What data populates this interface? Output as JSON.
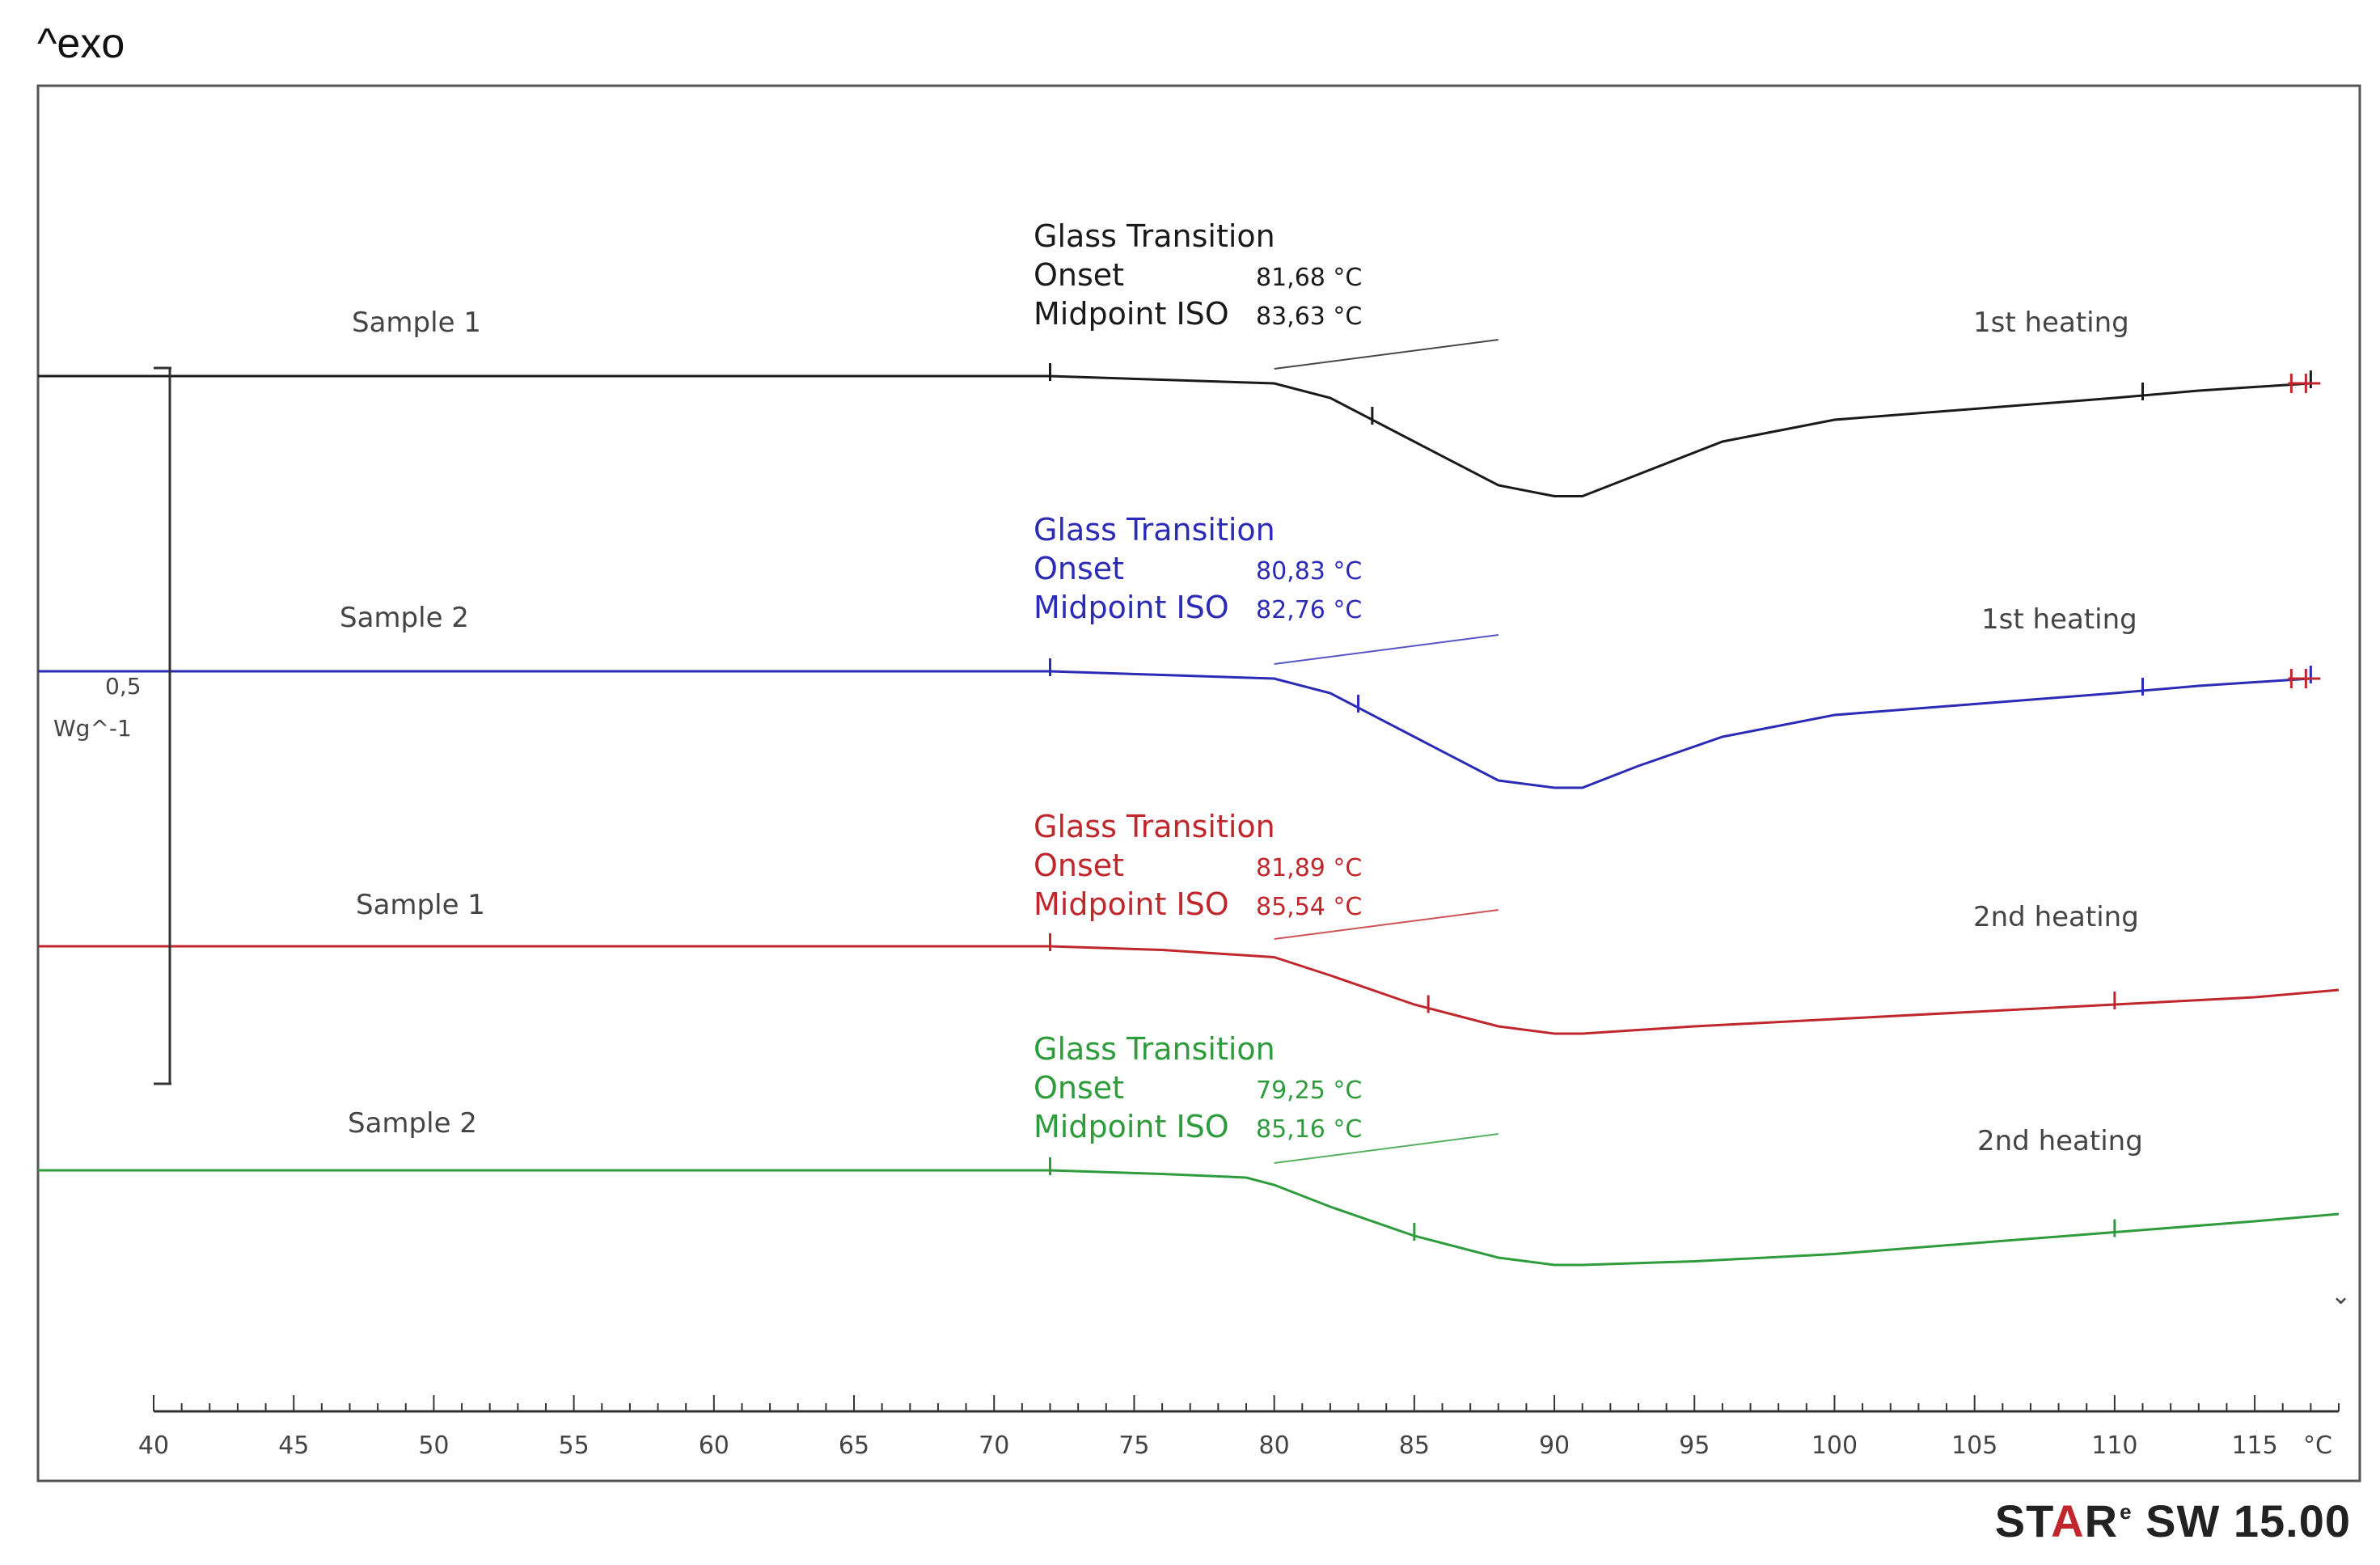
{
  "header": {
    "exo_label": "^exo"
  },
  "brand": {
    "name_part1": "ST",
    "name_red": "A",
    "name_part2": "R",
    "registered": "e",
    "version": "SW 15.00"
  },
  "scale_bar": {
    "value": "0,5",
    "unit": "Wg^-1"
  },
  "chart_data": {
    "type": "line",
    "title": "",
    "xlabel": "",
    "x_unit": "°C",
    "xlim": [
      40,
      118
    ],
    "x_tick_labels": [
      "40",
      "45",
      "50",
      "55",
      "60",
      "65",
      "70",
      "75",
      "80",
      "85",
      "90",
      "95",
      "100",
      "105",
      "110",
      "115"
    ],
    "grid": false,
    "series": [
      {
        "name": "Sample 1",
        "heating": "1st heating",
        "color": "#1a1a1a",
        "annotation": {
          "title": "Glass Transition",
          "onset_label": "Onset",
          "onset_value": "81,68 °C",
          "midpoint_label": "Midpoint ISO",
          "midpoint_value": "83,63 °C"
        },
        "x": [
          40,
          60,
          72,
          76,
          80,
          82,
          85,
          88,
          90,
          91,
          93,
          96,
          100,
          105,
          110,
          113,
          117
        ],
        "y": [
          0.0,
          0.0,
          0.0,
          -0.005,
          -0.01,
          -0.03,
          -0.09,
          -0.15,
          -0.165,
          -0.165,
          -0.135,
          -0.09,
          -0.06,
          -0.045,
          -0.03,
          -0.02,
          -0.01
        ],
        "markers_x": [
          72,
          83.5,
          111,
          117
        ]
      },
      {
        "name": "Sample 2",
        "heating": "1st heating",
        "color": "#2b2bb5",
        "annotation": {
          "title": "Glass Transition",
          "onset_label": "Onset",
          "onset_value": "80,83 °C",
          "midpoint_label": "Midpoint ISO",
          "midpoint_value": "82,76 °C"
        },
        "x": [
          40,
          60,
          72,
          76,
          80,
          82,
          85,
          88,
          90,
          91,
          93,
          96,
          100,
          105,
          110,
          113,
          117
        ],
        "y": [
          0.0,
          0.0,
          0.0,
          -0.005,
          -0.01,
          -0.03,
          -0.09,
          -0.15,
          -0.16,
          -0.16,
          -0.13,
          -0.09,
          -0.06,
          -0.045,
          -0.03,
          -0.02,
          -0.01
        ],
        "markers_x": [
          72,
          83,
          111,
          117
        ]
      },
      {
        "name": "Sample 1",
        "heating": "2nd heating",
        "color": "#c0272d",
        "annotation": {
          "title": "Glass Transition",
          "onset_label": "Onset",
          "onset_value": "81,89 °C",
          "midpoint_label": "Midpoint ISO",
          "midpoint_value": "85,54 °C"
        },
        "x": [
          40,
          60,
          72,
          76,
          80,
          82,
          85,
          88,
          90,
          91,
          95,
          100,
          105,
          110,
          115,
          118
        ],
        "y": [
          0.0,
          0.0,
          0.0,
          -0.005,
          -0.015,
          -0.04,
          -0.08,
          -0.11,
          -0.12,
          -0.12,
          -0.11,
          -0.1,
          -0.09,
          -0.08,
          -0.07,
          -0.06
        ],
        "markers_x": [
          72,
          85.5,
          110
        ]
      },
      {
        "name": "Sample 2",
        "heating": "2nd heating",
        "color": "#2e9c3c",
        "annotation": {
          "title": "Glass Transition",
          "onset_label": "Onset",
          "onset_value": "79,25 °C",
          "midpoint_label": "Midpoint ISO",
          "midpoint_value": "85,16 °C"
        },
        "x": [
          40,
          60,
          72,
          76,
          79,
          80,
          82,
          85,
          88,
          90,
          91,
          95,
          100,
          105,
          110,
          115,
          118
        ],
        "y": [
          0.0,
          0.0,
          0.0,
          -0.005,
          -0.01,
          -0.02,
          -0.05,
          -0.09,
          -0.12,
          -0.13,
          -0.13,
          -0.125,
          -0.115,
          -0.1,
          -0.085,
          -0.07,
          -0.06
        ],
        "markers_x": [
          72,
          85,
          110
        ]
      }
    ]
  }
}
